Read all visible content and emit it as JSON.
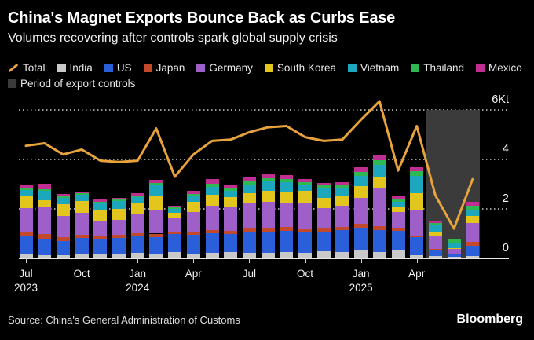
{
  "header": {
    "title": "China's Magnet Exports Bounce Back as Curbs Ease",
    "subtitle": "Volumes recovering after controls spark global supply crisis"
  },
  "legend": {
    "items": [
      {
        "label": "Total",
        "color": "#E8A33D",
        "swatch": "line"
      },
      {
        "label": "India",
        "color": "#C9C9C9",
        "swatch": "square"
      },
      {
        "label": "US",
        "color": "#2A5FD9",
        "swatch": "square"
      },
      {
        "label": "Japan",
        "color": "#C2492B",
        "swatch": "square"
      },
      {
        "label": "Germany",
        "color": "#9E5FC8",
        "swatch": "square"
      },
      {
        "label": "South Korea",
        "color": "#E2C51D",
        "swatch": "square"
      },
      {
        "label": "Vietnam",
        "color": "#1CA7BC",
        "swatch": "square"
      },
      {
        "label": "Thailand",
        "color": "#2EB852",
        "swatch": "square"
      },
      {
        "label": "Mexico",
        "color": "#C02E92",
        "swatch": "square"
      },
      {
        "label": "Period of export controls",
        "color": "#3B3B3B",
        "swatch": "square"
      }
    ]
  },
  "footer": {
    "source": "Source: China's General Administration of Customs",
    "brand": "Bloomberg"
  },
  "chart_data": {
    "type": "stacked_bar_with_line",
    "unit": "Kt",
    "ylim": [
      0,
      6.5
    ],
    "grid": "dotted horizontal at 2,4,6; solid baseline at 0",
    "legend_position": "top",
    "x": [
      "Jul 2023",
      "Aug 2023",
      "Sep 2023",
      "Oct 2023",
      "Nov 2023",
      "Dec 2023",
      "Jan 2024",
      "Feb 2024",
      "Mar 2024",
      "Apr 2024",
      "May 2024",
      "Jun 2024",
      "Jul 2024",
      "Aug 2024",
      "Sep 2024",
      "Oct 2024",
      "Nov 2024",
      "Dec 2024",
      "Jan 2025",
      "Feb 2025",
      "Mar 2025",
      "Apr 2025",
      "May 2025",
      "Jun 2025",
      "Jul 2025"
    ],
    "x_tick_labels": [
      {
        "index": 0,
        "month": "Jul",
        "year": "2023"
      },
      {
        "index": 3,
        "month": "Oct",
        "year": ""
      },
      {
        "index": 6,
        "month": "Jan",
        "year": "2024"
      },
      {
        "index": 9,
        "month": "Apr",
        "year": ""
      },
      {
        "index": 12,
        "month": "Jul",
        "year": ""
      },
      {
        "index": 15,
        "month": "Oct",
        "year": ""
      },
      {
        "index": 18,
        "month": "Jan",
        "year": "2025"
      },
      {
        "index": 21,
        "month": "Apr",
        "year": ""
      }
    ],
    "y_ticks": [
      {
        "value": 6,
        "label": "6Kt"
      },
      {
        "value": 4,
        "label": "4"
      },
      {
        "value": 2,
        "label": "2"
      },
      {
        "value": 0,
        "label": "0"
      }
    ],
    "line_series": {
      "name": "Total",
      "color": "#E8A33D",
      "values": [
        4.55,
        4.65,
        4.2,
        4.4,
        3.95,
        3.9,
        3.95,
        5.25,
        3.3,
        4.2,
        4.75,
        4.8,
        5.1,
        5.3,
        5.35,
        4.9,
        4.75,
        4.8,
        5.6,
        6.35,
        3.55,
        5.35,
        2.55,
        1.2,
        3.2
      ]
    },
    "bar_series": [
      {
        "name": "India",
        "color": "#C9C9C9",
        "values": [
          0.16,
          0.13,
          0.13,
          0.16,
          0.17,
          0.15,
          0.21,
          0.2,
          0.24,
          0.2,
          0.21,
          0.24,
          0.21,
          0.21,
          0.24,
          0.21,
          0.27,
          0.26,
          0.33,
          0.24,
          0.36,
          0.14,
          0.1,
          0.06,
          0.11
        ]
      },
      {
        "name": "US",
        "color": "#2A5FD9",
        "values": [
          0.74,
          0.67,
          0.57,
          0.67,
          0.6,
          0.68,
          0.68,
          0.67,
          0.75,
          0.76,
          0.8,
          0.75,
          0.87,
          0.83,
          0.88,
          0.83,
          0.8,
          0.89,
          0.9,
          0.9,
          0.75,
          0.72,
          0.25,
          0.1,
          0.4
        ]
      },
      {
        "name": "Japan",
        "color": "#C2492B",
        "values": [
          0.16,
          0.19,
          0.16,
          0.13,
          0.16,
          0.13,
          0.13,
          0.13,
          0.1,
          0.13,
          0.13,
          0.13,
          0.13,
          0.19,
          0.16,
          0.13,
          0.16,
          0.13,
          0.16,
          0.16,
          0.1,
          0.06,
          0.03,
          0.02,
          0.16
        ]
      },
      {
        "name": "Germany",
        "color": "#9E5FC8",
        "values": [
          0.97,
          1.11,
          0.86,
          0.89,
          0.57,
          0.6,
          0.79,
          0.95,
          0.57,
          0.79,
          0.98,
          0.98,
          1.02,
          1.05,
          0.98,
          1.08,
          0.79,
          0.86,
          1.05,
          1.52,
          0.67,
          1.02,
          0.55,
          0.2,
          0.76
        ]
      },
      {
        "name": "South Korea",
        "color": "#E2C51D",
        "values": [
          0.48,
          0.25,
          0.48,
          0.48,
          0.44,
          0.44,
          0.44,
          0.55,
          0.19,
          0.41,
          0.44,
          0.38,
          0.41,
          0.44,
          0.41,
          0.48,
          0.41,
          0.38,
          0.48,
          0.44,
          0.19,
          0.7,
          0.13,
          0.03,
          0.27
        ]
      },
      {
        "name": "Vietnam",
        "color": "#1CA7BC",
        "values": [
          0.26,
          0.38,
          0.25,
          0.25,
          0.29,
          0.32,
          0.22,
          0.45,
          0.16,
          0.25,
          0.32,
          0.25,
          0.35,
          0.38,
          0.41,
          0.25,
          0.41,
          0.35,
          0.41,
          0.51,
          0.22,
          0.7,
          0.28,
          0.22,
          0.23
        ]
      },
      {
        "name": "Thailand",
        "color": "#2EB852",
        "values": [
          0.06,
          0.06,
          0.06,
          0.05,
          0.06,
          0.06,
          0.06,
          0.1,
          0.05,
          0.06,
          0.13,
          0.1,
          0.13,
          0.13,
          0.13,
          0.1,
          0.1,
          0.1,
          0.16,
          0.19,
          0.1,
          0.19,
          0.08,
          0.12,
          0.19
        ]
      },
      {
        "name": "Mexico",
        "color": "#C02E92",
        "values": [
          0.16,
          0.22,
          0.1,
          0.08,
          0.1,
          0.06,
          0.1,
          0.12,
          0.07,
          0.13,
          0.19,
          0.16,
          0.19,
          0.16,
          0.16,
          0.13,
          0.1,
          0.1,
          0.19,
          0.22,
          0.13,
          0.16,
          0.08,
          0.04,
          0.15
        ]
      }
    ],
    "annotation_region": {
      "label": "Period of export controls",
      "start_index": 22,
      "end_index": 24,
      "color": "#3B3B3B"
    }
  }
}
